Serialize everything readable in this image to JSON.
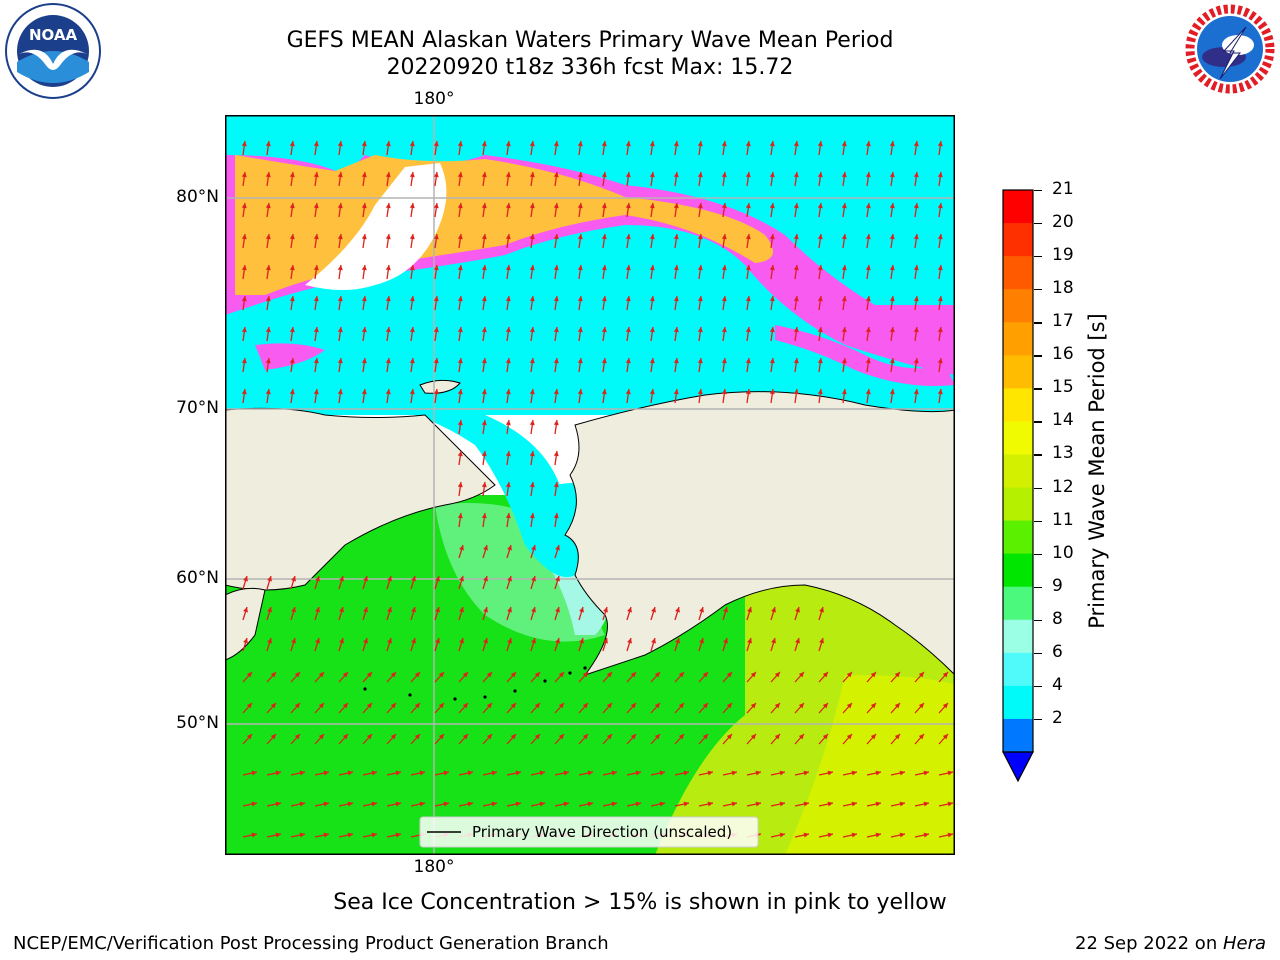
{
  "header": {
    "title_line1": "GEFS MEAN Alaskan Waters Primary Wave Mean Period",
    "title_line2": "20220920 t18z 336h fcst   Max: 15.72"
  },
  "logos": {
    "left_text": "NOAA",
    "right_text": "NATIONAL WEATHER SERVICE"
  },
  "map": {
    "lon_label_top": "180°",
    "lon_label_bottom": "180°",
    "lat_labels": [
      "80°N",
      "70°N",
      "60°N",
      "50°N"
    ],
    "legend_label": "Primary Wave Direction (unscaled)",
    "colors": {
      "land": "#efedde",
      "ocean_south": "#17e217",
      "ocean_south_yellow": "#c8f000",
      "ocean_north": "#00fafa",
      "ice_pink": "#f75bf0",
      "ice_orange": "#ffc13d",
      "arrow": "#e0201b"
    }
  },
  "colorbar": {
    "label": "Primary Wave Mean Period [s]",
    "ticks": [
      "21",
      "20",
      "19",
      "18",
      "17",
      "16",
      "15",
      "14",
      "13",
      "12",
      "11",
      "10",
      "9",
      "8",
      "6",
      "4",
      "2"
    ],
    "colors": [
      "#ff0000",
      "#ff3000",
      "#ff5a00",
      "#ff8000",
      "#ff9f00",
      "#ffbc00",
      "#ffe600",
      "#f0fa00",
      "#d2f000",
      "#b4f000",
      "#5af000",
      "#00e600",
      "#4bfa7d",
      "#9bffe6",
      "#50fafa",
      "#00fafa",
      "#0078ff"
    ],
    "extend_color": "#0000ff"
  },
  "footer": {
    "note": "Sea Ice Concentration > 15% is shown in pink to yellow",
    "credit": "NCEP/EMC/Verification Post Processing Product Generation Branch",
    "date_prefix": "22 Sep 2022 on ",
    "date_machine": "Hera"
  }
}
